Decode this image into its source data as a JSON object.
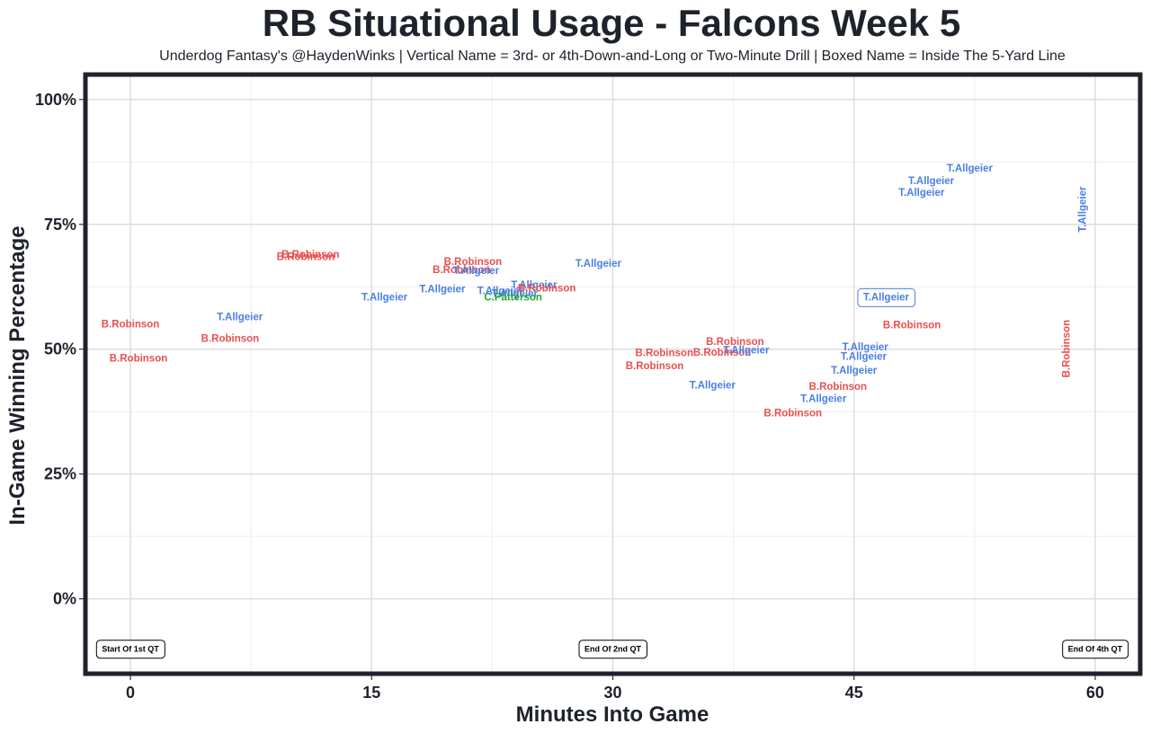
{
  "title": "RB Situational Usage - Falcons Week 5",
  "subtitle": "Underdog Fantasy's @HaydenWinks | Vertical Name = 3rd- or 4th-Down-and-Long or Two-Minute Drill | Boxed Name = Inside The 5-Yard Line",
  "chart_data": {
    "type": "scatter",
    "title": "RB Situational Usage - Falcons Week 5",
    "xlabel": "Minutes Into Game",
    "ylabel": "In-Game Winning Percentage",
    "xlim": [
      -2.8,
      62.8
    ],
    "ylim": [
      -15,
      105
    ],
    "x_ticks": [
      0,
      15,
      30,
      45,
      60
    ],
    "x_tick_labels": [
      "0",
      "15",
      "30",
      "45",
      "60"
    ],
    "y_ticks": [
      0,
      25,
      50,
      75,
      100
    ],
    "y_tick_labels": [
      "0%",
      "25%",
      "50%",
      "75%",
      "100%"
    ],
    "x_minor_ticks": [
      7.5,
      22.5,
      37.5,
      52.5
    ],
    "y_minor_ticks": [
      12.5,
      37.5,
      62.5,
      87.5
    ],
    "grid": true,
    "player_colors": {
      "B.Robinson": "#e8504f",
      "T.Allgeier": "#4a7fe6",
      "C.Patterson": "#1fa82e"
    },
    "points": [
      {
        "player": "B.Robinson",
        "x": 0.0,
        "y": 55.1,
        "vertical": false,
        "boxed": false
      },
      {
        "player": "B.Robinson",
        "x": 0.5,
        "y": 48.2,
        "vertical": false,
        "boxed": false
      },
      {
        "player": "T.Allgeier",
        "x": 6.8,
        "y": 56.5,
        "vertical": false,
        "boxed": false
      },
      {
        "player": "B.Robinson",
        "x": 6.2,
        "y": 52.2,
        "vertical": false,
        "boxed": false
      },
      {
        "player": "B.Robinson",
        "x": 11.2,
        "y": 69.0,
        "vertical": false,
        "boxed": false
      },
      {
        "player": "B.Robinson",
        "x": 10.9,
        "y": 68.6,
        "vertical": false,
        "boxed": false
      },
      {
        "player": "T.Allgeier",
        "x": 15.8,
        "y": 60.5,
        "vertical": false,
        "boxed": false
      },
      {
        "player": "T.Allgeier",
        "x": 19.4,
        "y": 62.1,
        "vertical": false,
        "boxed": false
      },
      {
        "player": "B.Robinson",
        "x": 21.3,
        "y": 67.6,
        "vertical": false,
        "boxed": false
      },
      {
        "player": "B.Robinson",
        "x": 20.6,
        "y": 66.0,
        "vertical": false,
        "boxed": false
      },
      {
        "player": "T.Allgeier",
        "x": 21.5,
        "y": 65.8,
        "vertical": false,
        "boxed": false
      },
      {
        "player": "T.Allgeier",
        "x": 23.0,
        "y": 61.7,
        "vertical": false,
        "boxed": false
      },
      {
        "player": "T.Allgeier",
        "x": 23.9,
        "y": 61.2,
        "vertical": false,
        "boxed": false
      },
      {
        "player": "C.Patterson",
        "x": 23.8,
        "y": 60.5,
        "vertical": false,
        "boxed": false
      },
      {
        "player": "T.Allgeier",
        "x": 25.1,
        "y": 62.9,
        "vertical": false,
        "boxed": false
      },
      {
        "player": "B.Robinson",
        "x": 25.9,
        "y": 62.3,
        "vertical": false,
        "boxed": false
      },
      {
        "player": "T.Allgeier",
        "x": 29.1,
        "y": 67.2,
        "vertical": false,
        "boxed": false
      },
      {
        "player": "B.Robinson",
        "x": 33.2,
        "y": 49.3,
        "vertical": false,
        "boxed": false
      },
      {
        "player": "B.Robinson",
        "x": 32.6,
        "y": 46.7,
        "vertical": false,
        "boxed": false
      },
      {
        "player": "B.Robinson",
        "x": 37.6,
        "y": 51.6,
        "vertical": false,
        "boxed": false
      },
      {
        "player": "B.Robinson",
        "x": 36.8,
        "y": 49.4,
        "vertical": false,
        "boxed": false
      },
      {
        "player": "T.Allgeier",
        "x": 38.3,
        "y": 49.9,
        "vertical": false,
        "boxed": false
      },
      {
        "player": "T.Allgeier",
        "x": 36.2,
        "y": 42.8,
        "vertical": false,
        "boxed": false
      },
      {
        "player": "B.Robinson",
        "x": 41.2,
        "y": 37.3,
        "vertical": false,
        "boxed": false
      },
      {
        "player": "B.Robinson",
        "x": 44.0,
        "y": 42.6,
        "vertical": false,
        "boxed": false
      },
      {
        "player": "T.Allgeier",
        "x": 43.1,
        "y": 40.1,
        "vertical": false,
        "boxed": false
      },
      {
        "player": "T.Allgeier",
        "x": 45.0,
        "y": 45.8,
        "vertical": false,
        "boxed": false
      },
      {
        "player": "T.Allgeier",
        "x": 45.6,
        "y": 48.6,
        "vertical": false,
        "boxed": false
      },
      {
        "player": "T.Allgeier",
        "x": 45.7,
        "y": 50.5,
        "vertical": false,
        "boxed": false
      },
      {
        "player": "T.Allgeier",
        "x": 47.0,
        "y": 60.4,
        "vertical": false,
        "boxed": true
      },
      {
        "player": "B.Robinson",
        "x": 48.6,
        "y": 54.9,
        "vertical": false,
        "boxed": false
      },
      {
        "player": "T.Allgeier",
        "x": 49.2,
        "y": 81.4,
        "vertical": false,
        "boxed": false
      },
      {
        "player": "T.Allgeier",
        "x": 49.8,
        "y": 83.8,
        "vertical": false,
        "boxed": false
      },
      {
        "player": "T.Allgeier",
        "x": 52.2,
        "y": 86.3,
        "vertical": false,
        "boxed": false
      },
      {
        "player": "T.Allgeier",
        "x": 59.2,
        "y": 78.0,
        "vertical": true,
        "boxed": false
      },
      {
        "player": "B.Robinson",
        "x": 58.2,
        "y": 50.1,
        "vertical": true,
        "boxed": false
      }
    ],
    "period_markers": [
      {
        "label": "Start Of 1st QT",
        "x": 0.0,
        "y": -10
      },
      {
        "label": "End Of 2nd QT",
        "x": 30.0,
        "y": -10
      },
      {
        "label": "End Of 4th QT",
        "x": 60.0,
        "y": -10
      }
    ]
  }
}
